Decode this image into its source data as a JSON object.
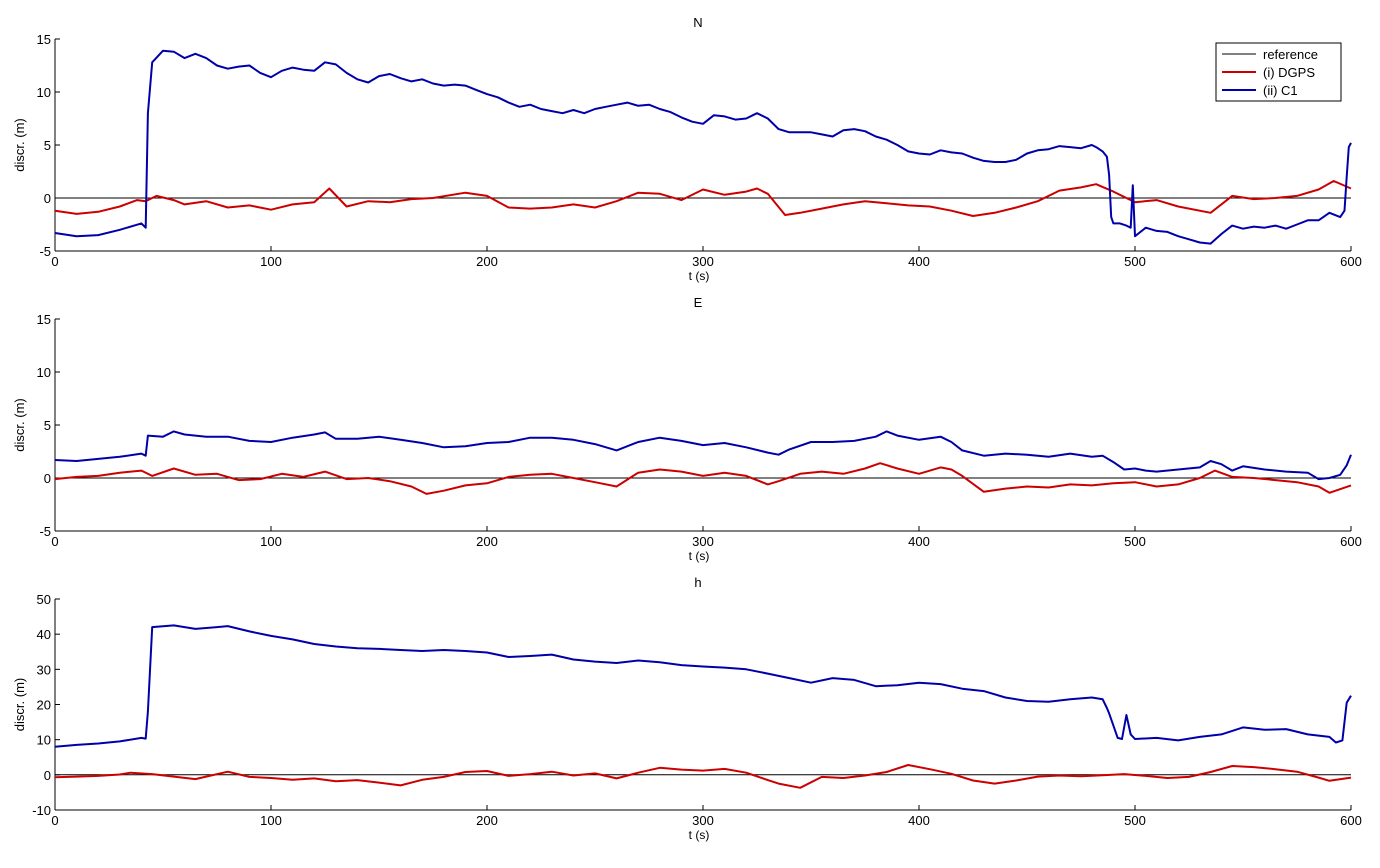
{
  "colors": {
    "reference": "#000000",
    "dgps": "#cc0000",
    "c1": "#0000aa",
    "axis": "#000000",
    "background": "#ffffff"
  },
  "legend": {
    "placement": "top-right",
    "entries": [
      {
        "label": "reference",
        "color": "#000000"
      },
      {
        "label": "(i) DGPS",
        "color": "#cc0000"
      },
      {
        "label": "(ii) C1",
        "color": "#0000aa"
      }
    ]
  },
  "chart_data": [
    {
      "type": "line",
      "title": "N",
      "xlabel": "t (s)",
      "ylabel": "discr. (m)",
      "xlim": [
        0,
        600
      ],
      "ylim": [
        -5,
        15
      ],
      "xticks": [
        0,
        100,
        200,
        300,
        400,
        500,
        600
      ],
      "yticks": [
        -5,
        0,
        5,
        10,
        15
      ],
      "series": [
        {
          "name": "reference",
          "x": [
            0,
            600
          ],
          "values": [
            0,
            0
          ]
        },
        {
          "name": "(i) DGPS",
          "x": [
            0,
            10,
            20,
            30,
            38,
            42,
            47,
            55,
            60,
            70,
            80,
            90,
            100,
            110,
            120,
            127,
            135,
            145,
            155,
            165,
            175,
            190,
            200,
            210,
            220,
            230,
            240,
            250,
            260,
            270,
            280,
            290,
            300,
            310,
            320,
            325,
            330,
            338,
            345,
            355,
            365,
            375,
            385,
            395,
            405,
            415,
            425,
            435,
            445,
            455,
            465,
            475,
            482,
            490,
            500,
            510,
            520,
            535,
            545,
            555,
            565,
            575,
            585,
            592,
            600
          ],
          "values": [
            -1.2,
            -1.5,
            -1.3,
            -0.8,
            -0.2,
            -0.3,
            0.2,
            -0.2,
            -0.6,
            -0.3,
            -0.9,
            -0.7,
            -1.1,
            -0.6,
            -0.4,
            0.9,
            -0.8,
            -0.3,
            -0.4,
            -0.1,
            0.0,
            0.5,
            0.2,
            -0.9,
            -1.0,
            -0.9,
            -0.6,
            -0.9,
            -0.3,
            0.5,
            0.4,
            -0.2,
            0.8,
            0.3,
            0.6,
            0.9,
            0.4,
            -1.6,
            -1.4,
            -1.0,
            -0.6,
            -0.3,
            -0.5,
            -0.7,
            -0.8,
            -1.2,
            -1.7,
            -1.4,
            -0.9,
            -0.3,
            0.7,
            1.0,
            1.3,
            0.6,
            -0.4,
            -0.2,
            -0.8,
            -1.4,
            0.2,
            -0.1,
            0.0,
            0.2,
            0.8,
            1.6,
            0.9
          ]
        },
        {
          "name": "(ii) C1",
          "x": [
            0,
            10,
            20,
            30,
            40,
            42,
            43,
            45,
            50,
            55,
            60,
            65,
            70,
            75,
            80,
            85,
            90,
            95,
            100,
            105,
            110,
            115,
            120,
            125,
            130,
            135,
            140,
            145,
            150,
            155,
            160,
            165,
            170,
            175,
            180,
            185,
            190,
            195,
            200,
            205,
            210,
            215,
            220,
            225,
            230,
            235,
            240,
            245,
            250,
            255,
            260,
            265,
            270,
            275,
            280,
            285,
            290,
            295,
            300,
            305,
            310,
            315,
            320,
            325,
            330,
            335,
            340,
            345,
            350,
            355,
            360,
            365,
            370,
            375,
            380,
            385,
            390,
            395,
            400,
            405,
            410,
            415,
            420,
            425,
            430,
            435,
            440,
            445,
            450,
            455,
            460,
            465,
            470,
            475,
            480,
            482,
            485,
            487,
            488,
            489,
            490,
            493,
            496,
            498,
            499,
            500,
            505,
            510,
            515,
            520,
            525,
            530,
            535,
            540,
            545,
            550,
            555,
            560,
            565,
            570,
            575,
            580,
            585,
            590,
            595,
            597,
            598,
            599,
            600
          ],
          "values": [
            -3.3,
            -3.6,
            -3.5,
            -3.0,
            -2.4,
            -2.8,
            8.0,
            12.8,
            13.9,
            13.8,
            13.2,
            13.6,
            13.2,
            12.5,
            12.2,
            12.4,
            12.5,
            11.8,
            11.4,
            12.0,
            12.3,
            12.1,
            12.0,
            12.8,
            12.6,
            11.8,
            11.2,
            10.9,
            11.5,
            11.7,
            11.3,
            11.0,
            11.2,
            10.8,
            10.6,
            10.7,
            10.6,
            10.2,
            9.8,
            9.5,
            9.0,
            8.6,
            8.8,
            8.4,
            8.2,
            8.0,
            8.3,
            8.0,
            8.4,
            8.6,
            8.8,
            9.0,
            8.7,
            8.8,
            8.4,
            8.1,
            7.6,
            7.2,
            7.0,
            7.8,
            7.7,
            7.4,
            7.5,
            8.0,
            7.5,
            6.5,
            6.2,
            6.2,
            6.2,
            6.0,
            5.8,
            6.4,
            6.5,
            6.3,
            5.8,
            5.5,
            5.0,
            4.4,
            4.2,
            4.1,
            4.5,
            4.3,
            4.2,
            3.8,
            3.5,
            3.4,
            3.4,
            3.6,
            4.2,
            4.5,
            4.6,
            4.9,
            4.8,
            4.7,
            5.0,
            4.8,
            4.4,
            3.9,
            2.2,
            -1.8,
            -2.4,
            -2.4,
            -2.6,
            -2.8,
            1.2,
            -3.6,
            -2.8,
            -3.1,
            -3.2,
            -3.6,
            -3.9,
            -4.2,
            -4.3,
            -3.4,
            -2.6,
            -2.9,
            -2.7,
            -2.8,
            -2.6,
            -2.9,
            -2.5,
            -2.1,
            -2.1,
            -1.4,
            -1.8,
            -1.2,
            2.0,
            4.8,
            5.2
          ]
        }
      ]
    },
    {
      "type": "line",
      "title": "E",
      "xlabel": "t (s)",
      "ylabel": "discr. (m)",
      "xlim": [
        0,
        600
      ],
      "ylim": [
        -5,
        15
      ],
      "xticks": [
        0,
        100,
        200,
        300,
        400,
        500,
        600
      ],
      "yticks": [
        -5,
        0,
        5,
        10,
        15
      ],
      "series": [
        {
          "name": "reference",
          "x": [
            0,
            600
          ],
          "values": [
            0,
            0
          ]
        },
        {
          "name": "(i) DGPS",
          "x": [
            0,
            10,
            20,
            30,
            40,
            45,
            55,
            65,
            75,
            85,
            95,
            105,
            115,
            125,
            135,
            145,
            155,
            165,
            172,
            180,
            190,
            200,
            210,
            220,
            230,
            240,
            250,
            260,
            270,
            280,
            290,
            300,
            310,
            320,
            330,
            335,
            345,
            355,
            365,
            375,
            382,
            390,
            400,
            410,
            415,
            420,
            430,
            440,
            450,
            460,
            470,
            480,
            490,
            500,
            510,
            520,
            530,
            537,
            545,
            555,
            565,
            575,
            585,
            590,
            600
          ],
          "values": [
            -0.1,
            0.1,
            0.2,
            0.5,
            0.7,
            0.2,
            0.9,
            0.3,
            0.4,
            -0.2,
            -0.1,
            0.4,
            0.1,
            0.6,
            -0.1,
            0.0,
            -0.3,
            -0.8,
            -1.5,
            -1.2,
            -0.7,
            -0.5,
            0.1,
            0.3,
            0.4,
            0.0,
            -0.4,
            -0.8,
            0.5,
            0.8,
            0.6,
            0.2,
            0.5,
            0.2,
            -0.6,
            -0.3,
            0.4,
            0.6,
            0.4,
            0.9,
            1.4,
            0.9,
            0.4,
            1.0,
            0.8,
            0.2,
            -1.3,
            -1.0,
            -0.8,
            -0.9,
            -0.6,
            -0.7,
            -0.5,
            -0.4,
            -0.8,
            -0.6,
            0.0,
            0.7,
            0.1,
            0.0,
            -0.2,
            -0.4,
            -0.8,
            -1.4,
            -0.7
          ]
        },
        {
          "name": "(ii) C1",
          "x": [
            0,
            10,
            20,
            30,
            40,
            42,
            43,
            50,
            55,
            60,
            70,
            80,
            90,
            100,
            110,
            120,
            125,
            130,
            140,
            150,
            160,
            170,
            180,
            190,
            200,
            210,
            220,
            230,
            240,
            250,
            260,
            270,
            280,
            290,
            300,
            310,
            320,
            330,
            335,
            340,
            350,
            360,
            370,
            380,
            385,
            390,
            400,
            410,
            415,
            420,
            430,
            440,
            450,
            460,
            470,
            480,
            485,
            490,
            495,
            500,
            505,
            510,
            520,
            530,
            535,
            540,
            545,
            550,
            560,
            570,
            580,
            585,
            590,
            595,
            598,
            600
          ],
          "values": [
            1.7,
            1.6,
            1.8,
            2.0,
            2.3,
            2.1,
            4.0,
            3.9,
            4.4,
            4.1,
            3.9,
            3.9,
            3.5,
            3.4,
            3.8,
            4.1,
            4.3,
            3.7,
            3.7,
            3.9,
            3.6,
            3.3,
            2.9,
            3.0,
            3.3,
            3.4,
            3.8,
            3.8,
            3.6,
            3.2,
            2.6,
            3.4,
            3.8,
            3.5,
            3.1,
            3.3,
            2.9,
            2.4,
            2.2,
            2.7,
            3.4,
            3.4,
            3.5,
            3.9,
            4.4,
            4.0,
            3.6,
            3.9,
            3.4,
            2.6,
            2.1,
            2.3,
            2.2,
            2.0,
            2.3,
            2.0,
            2.1,
            1.5,
            0.8,
            0.9,
            0.7,
            0.6,
            0.8,
            1.0,
            1.6,
            1.3,
            0.7,
            1.1,
            0.8,
            0.6,
            0.5,
            -0.1,
            0.0,
            0.3,
            1.2,
            2.2
          ]
        }
      ]
    },
    {
      "type": "line",
      "title": "h",
      "xlabel": "t (s)",
      "ylabel": "discr. (m)",
      "xlim": [
        0,
        600
      ],
      "ylim": [
        -10,
        50
      ],
      "xticks": [
        0,
        100,
        200,
        300,
        400,
        500,
        600
      ],
      "yticks": [
        -10,
        0,
        10,
        20,
        30,
        40,
        50
      ],
      "series": [
        {
          "name": "reference",
          "x": [
            0,
            600
          ],
          "values": [
            0,
            0
          ]
        },
        {
          "name": "(i) DGPS",
          "x": [
            0,
            10,
            20,
            30,
            35,
            45,
            55,
            65,
            70,
            80,
            90,
            100,
            110,
            120,
            130,
            140,
            150,
            160,
            170,
            180,
            190,
            200,
            210,
            220,
            230,
            240,
            250,
            260,
            270,
            280,
            290,
            300,
            310,
            320,
            330,
            335,
            345,
            355,
            365,
            375,
            385,
            395,
            405,
            415,
            425,
            435,
            445,
            455,
            465,
            475,
            485,
            495,
            505,
            515,
            525,
            535,
            545,
            555,
            565,
            575,
            585,
            590,
            600
          ],
          "values": [
            -0.7,
            -0.5,
            -0.3,
            0.1,
            0.6,
            0.2,
            -0.5,
            -1.2,
            -0.5,
            0.9,
            -0.6,
            -0.9,
            -1.4,
            -1.0,
            -1.8,
            -1.5,
            -2.2,
            -3.0,
            -1.4,
            -0.6,
            0.8,
            1.1,
            -0.3,
            0.2,
            0.9,
            -0.2,
            0.4,
            -1.0,
            0.6,
            2.0,
            1.5,
            1.2,
            1.7,
            0.6,
            -1.5,
            -2.5,
            -3.7,
            -0.6,
            -0.9,
            -0.2,
            0.8,
            2.8,
            1.6,
            0.3,
            -1.6,
            -2.5,
            -1.6,
            -0.5,
            -0.2,
            -0.4,
            -0.1,
            0.2,
            -0.3,
            -0.9,
            -0.6,
            0.8,
            2.5,
            2.2,
            1.6,
            0.9,
            -0.8,
            -1.7,
            -0.8
          ]
        },
        {
          "name": "(ii) C1",
          "x": [
            0,
            10,
            20,
            30,
            40,
            42,
            43,
            45,
            55,
            65,
            75,
            80,
            90,
            100,
            110,
            120,
            130,
            140,
            150,
            160,
            170,
            180,
            190,
            200,
            210,
            220,
            230,
            240,
            250,
            260,
            270,
            280,
            290,
            300,
            310,
            320,
            330,
            340,
            350,
            360,
            370,
            380,
            390,
            400,
            410,
            420,
            430,
            440,
            450,
            460,
            470,
            480,
            485,
            487,
            488,
            492,
            494,
            496,
            498,
            500,
            510,
            520,
            530,
            540,
            550,
            560,
            570,
            580,
            590,
            593,
            596,
            598,
            600
          ],
          "values": [
            8.0,
            8.5,
            8.9,
            9.5,
            10.5,
            10.3,
            18.0,
            42.0,
            42.5,
            41.5,
            42.0,
            42.3,
            40.8,
            39.5,
            38.5,
            37.2,
            36.5,
            36.0,
            35.8,
            35.5,
            35.2,
            35.5,
            35.2,
            34.8,
            33.5,
            33.8,
            34.2,
            32.8,
            32.2,
            31.8,
            32.5,
            32.0,
            31.2,
            30.8,
            30.5,
            30.0,
            28.8,
            27.5,
            26.2,
            27.5,
            27.0,
            25.2,
            25.5,
            26.2,
            25.8,
            24.5,
            23.8,
            22.0,
            21.0,
            20.8,
            21.5,
            22.0,
            21.5,
            19.0,
            17.5,
            10.5,
            10.2,
            17.0,
            11.5,
            10.2,
            10.5,
            9.8,
            10.8,
            11.5,
            13.5,
            12.8,
            13.0,
            11.5,
            10.8,
            9.2,
            9.8,
            20.5,
            22.5
          ]
        }
      ]
    }
  ]
}
